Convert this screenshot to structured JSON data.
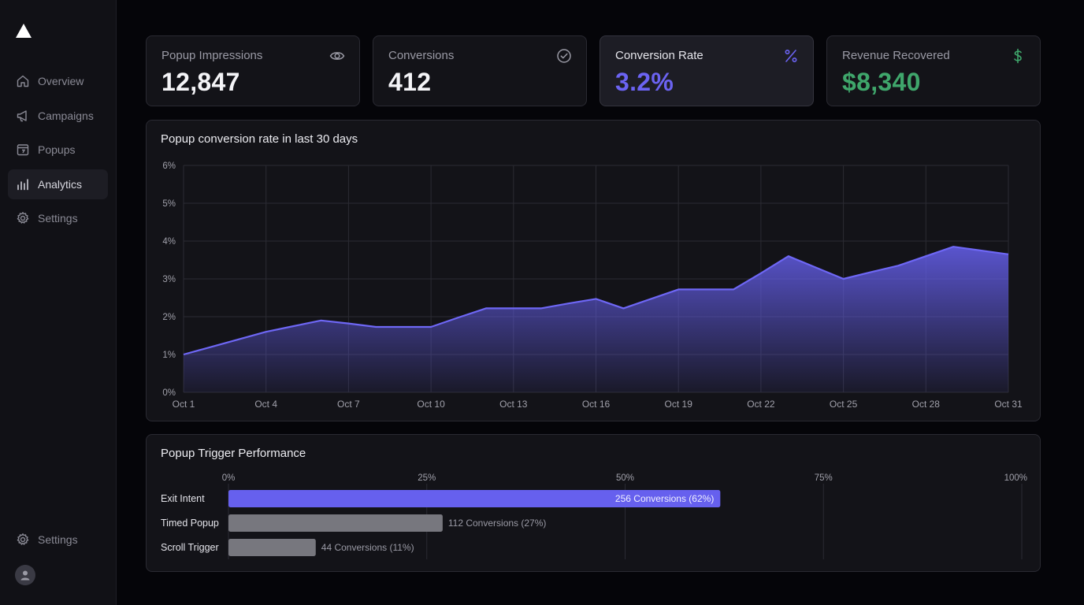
{
  "sidebar": {
    "nav": [
      {
        "label": "Overview",
        "icon": "home-icon"
      },
      {
        "label": "Campaigns",
        "icon": "megaphone-icon"
      },
      {
        "label": "Popups",
        "icon": "calendar-icon"
      },
      {
        "label": "Analytics",
        "icon": "bar-chart-icon",
        "active": true
      },
      {
        "label": "Settings",
        "icon": "gear-icon"
      }
    ],
    "bottom_settings_label": "Settings"
  },
  "stats": [
    {
      "title": "Popup Impressions",
      "value": "12,847",
      "icon": "eye-icon"
    },
    {
      "title": "Conversions",
      "value": "412",
      "icon": "check-circle-icon"
    },
    {
      "title": "Conversion Rate",
      "value": "3.2%",
      "icon": "percent-icon",
      "color": "#6b63f2"
    },
    {
      "title": "Revenue Recovered",
      "value": "$8,340",
      "icon": "dollar-icon",
      "color": "#3fa66b"
    }
  ],
  "colors": {
    "accent": "#6660ee",
    "green": "#3fa66b",
    "gray_bar": "#77777e"
  },
  "line_panel": {
    "title": "Popup conversion rate in last 30 days"
  },
  "bar_panel": {
    "title": "Popup Trigger Performance"
  },
  "chart_data": [
    {
      "type": "area",
      "title": "Popup conversion rate in last 30 days",
      "x_tick_labels": [
        "Oct 1",
        "Oct 4",
        "Oct 7",
        "Oct 10",
        "Oct 13",
        "Oct 16",
        "Oct 19",
        "Oct 22",
        "Oct 25",
        "Oct 28",
        "Oct 31"
      ],
      "y_tick_labels": [
        "0%",
        "1%",
        "2%",
        "3%",
        "4%",
        "5%",
        "6%"
      ],
      "ylim": [
        0,
        6
      ],
      "x": [
        1,
        2,
        3,
        4,
        5,
        6,
        7,
        8,
        9,
        10,
        11,
        12,
        13,
        14,
        15,
        16,
        17,
        18,
        19,
        20,
        21,
        22,
        23,
        24,
        25,
        26,
        27,
        28,
        29,
        30,
        31
      ],
      "values": [
        1.0,
        1.2,
        1.4,
        1.6,
        1.75,
        1.9,
        1.82,
        1.73,
        1.73,
        1.73,
        1.98,
        2.22,
        2.22,
        2.22,
        2.35,
        2.47,
        2.22,
        2.47,
        2.72,
        2.72,
        2.72,
        3.15,
        3.6,
        3.3,
        3.0,
        3.18,
        3.35,
        3.6,
        3.85,
        3.75,
        3.65
      ],
      "grid": true
    },
    {
      "type": "bar",
      "orientation": "horizontal",
      "title": "Popup Trigger Performance",
      "categories": [
        "Exit Intent",
        "Timed Popup",
        "Scroll Trigger"
      ],
      "values": [
        62,
        27,
        11
      ],
      "data_labels": [
        "256 Conversions (62%)",
        "112 Conversions (27%)",
        "44 Conversions (11%)"
      ],
      "x_tick_labels": [
        "0%",
        "25%",
        "50%",
        "75%",
        "100%"
      ],
      "xlim": [
        0,
        100
      ],
      "grid": true
    }
  ]
}
